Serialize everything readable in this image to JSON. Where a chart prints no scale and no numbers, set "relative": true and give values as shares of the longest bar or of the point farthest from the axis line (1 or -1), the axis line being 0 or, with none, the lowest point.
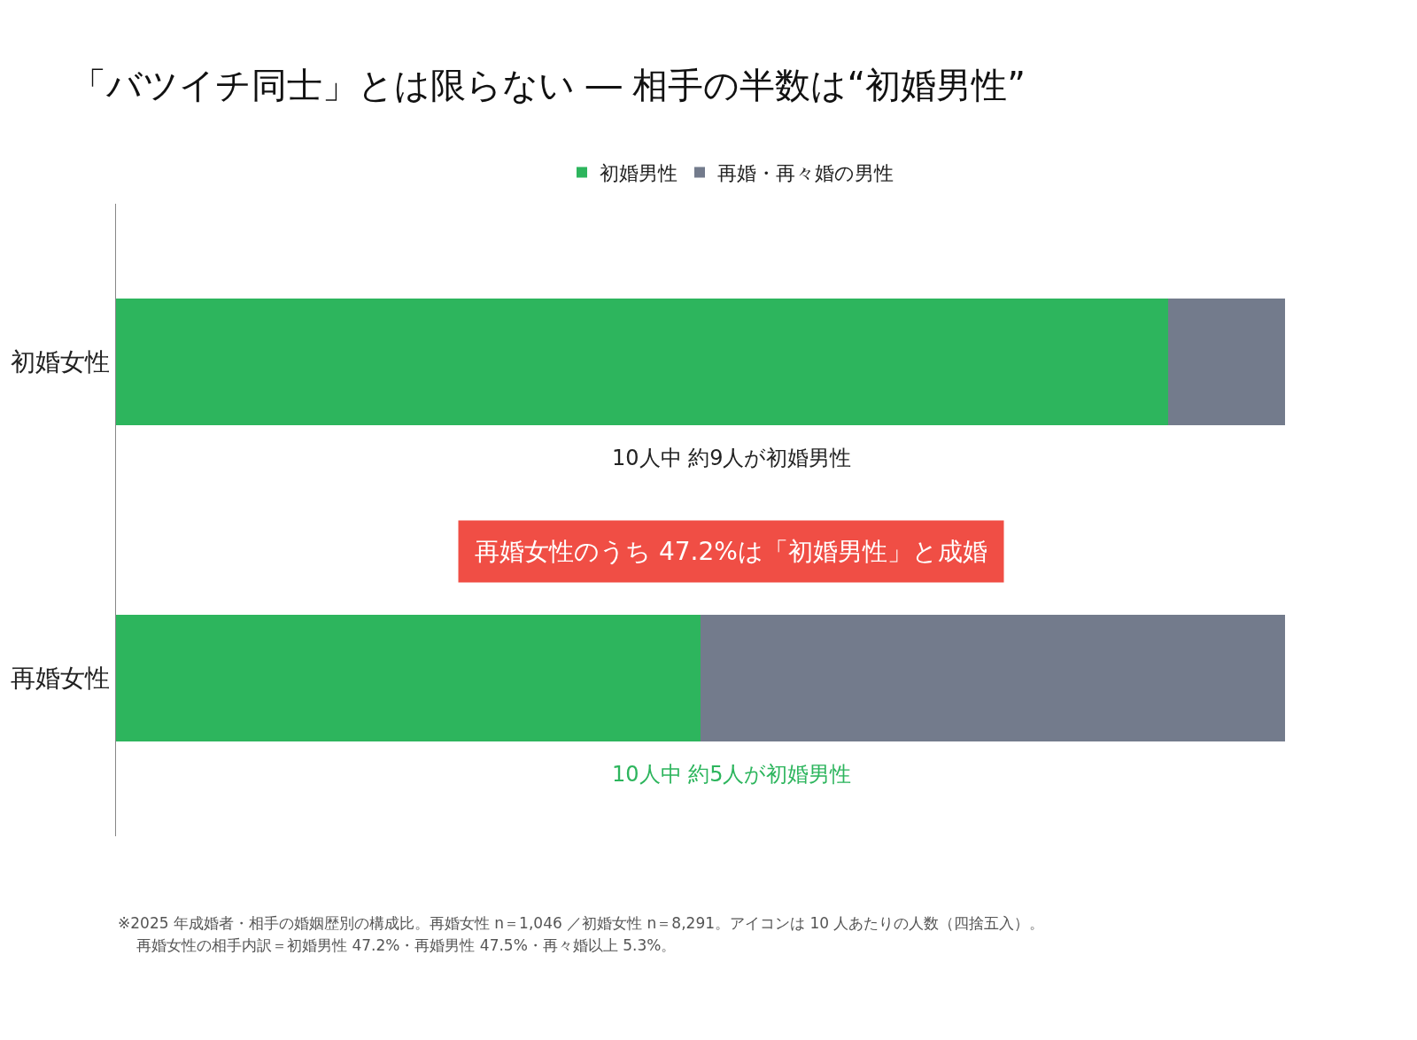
{
  "chart_data": {
    "type": "bar",
    "orientation": "horizontal",
    "stacked": true,
    "relative": true,
    "title": "「バツイチ同士」とは限らない ― 相手の半数は“初婚男性”",
    "categories": [
      "初婚女性",
      "再婚女性"
    ],
    "series": [
      {
        "name": "初婚男性",
        "color": "#2db55d",
        "values": [
          0.9,
          0.5
        ]
      },
      {
        "name": "再婚・再々婚の男性",
        "color": "#737b8c",
        "values": [
          0.1,
          0.5
        ]
      }
    ],
    "legend": "top",
    "annotations": [
      "10人中 約9人が初婚男性",
      "再婚女性のうち 47.2%は「初婚男性」と成婚",
      "10人中 約5人が初婚男性",
      "※2025 年成婚者・相手の婚姻歴別の構成比。再婚女性 n＝1,046 ／初婚女性 n＝8,291。アイコンは 10 人あたりの人数（四捨五入）。",
      "再婚女性の相手内訳＝初婚男性 47.2%・再婚男性 47.5%・再々婚以上 5.3%。"
    ]
  }
}
